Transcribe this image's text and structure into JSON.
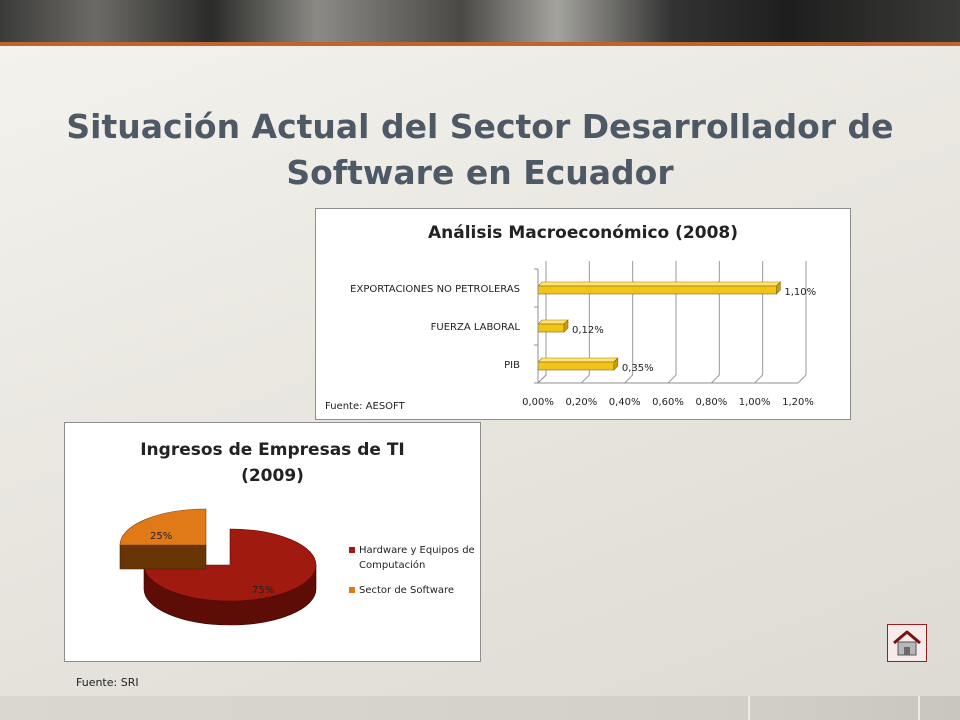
{
  "slide": {
    "title": "Situación Actual del Sector Desarrollador de Software en Ecuador",
    "footer_source": "Fuente: SRI",
    "home_button_icon": "home-icon"
  },
  "colors": {
    "title": "#4e5966",
    "bar_fill": "#f0c418",
    "pie_hardware": "#a11a10",
    "pie_software": "#e07a18",
    "accent_strip": "#c0632f"
  },
  "chart_data": [
    {
      "type": "bar",
      "orientation": "horizontal",
      "style": "3d",
      "title": "Análisis Macroeconómico (2008)",
      "source": "Fuente: AESOFT",
      "categories": [
        "PIB",
        "FUERZA LABORAL",
        "EXPORTACIONES NO PETROLERAS"
      ],
      "values": [
        0.35,
        0.12,
        1.1
      ],
      "value_labels": [
        "0,35%",
        "0,12%",
        "1,10%"
      ],
      "xlim": [
        0,
        1.2
      ],
      "xticks": [
        "0,00%",
        "0,20%",
        "0,40%",
        "0,60%",
        "0,80%",
        "1,00%",
        "1,20%"
      ],
      "grid": true,
      "xlabel": "",
      "ylabel": ""
    },
    {
      "type": "pie",
      "style": "3d",
      "title": "Ingresos de Empresas de TI (2009)",
      "title_lines": [
        "Ingresos de Empresas de TI",
        "(2009)"
      ],
      "labels": [
        "Hardware y Equipos de Computación",
        "Sector de Software"
      ],
      "values": [
        75,
        25
      ],
      "value_labels": [
        "75%",
        "25%"
      ],
      "legend_placement": "right"
    }
  ]
}
